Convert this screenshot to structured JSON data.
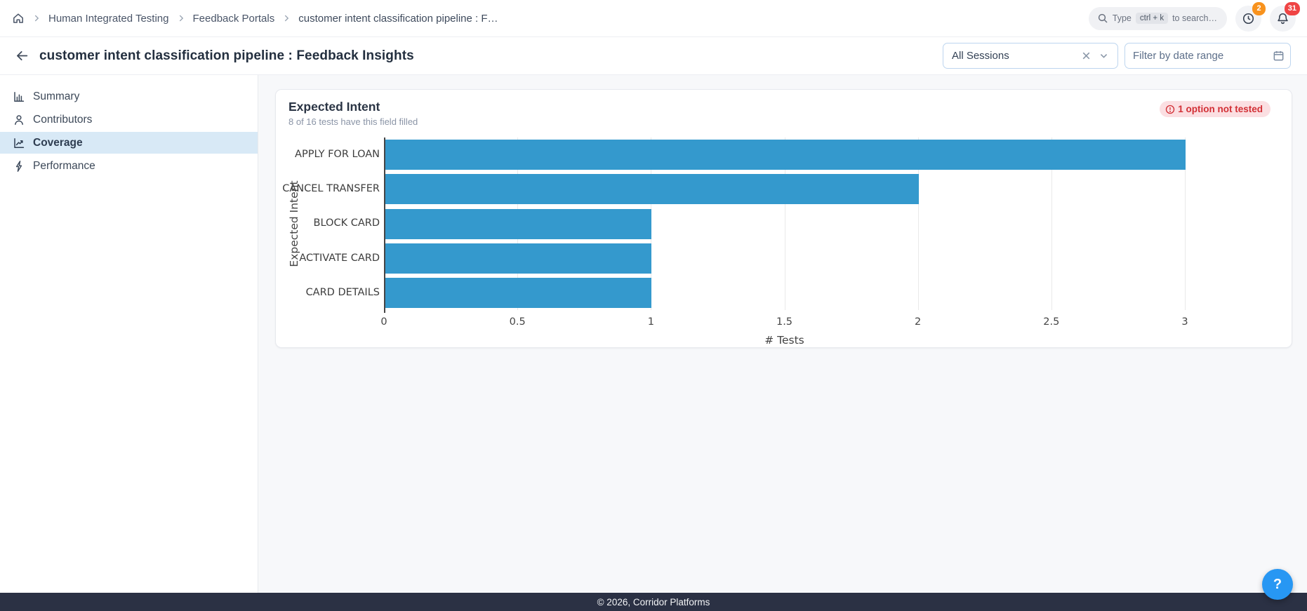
{
  "topbar": {
    "breadcrumb": {
      "items": [
        {
          "label": "Human Integrated Testing"
        },
        {
          "label": "Feedback Portals"
        },
        {
          "label": "customer intent classification pipeline : F…"
        }
      ]
    },
    "search": {
      "prefix": "Type",
      "kbd": "ctrl + k",
      "suffix": "to search…"
    },
    "history_badge": "2",
    "notifications_badge": "31"
  },
  "header": {
    "title": "customer intent classification pipeline : Feedback Insights",
    "session_filter": {
      "value": "All Sessions"
    },
    "date_filter": {
      "placeholder": "Filter by date range"
    }
  },
  "sidebar": {
    "items": [
      {
        "label": "Summary",
        "icon": "bar-chart-icon",
        "active": false
      },
      {
        "label": "Contributors",
        "icon": "person-icon",
        "active": false
      },
      {
        "label": "Coverage",
        "icon": "line-chart-icon",
        "active": true
      },
      {
        "label": "Performance",
        "icon": "lightning-icon",
        "active": false
      }
    ]
  },
  "card": {
    "title": "Expected Intent",
    "subtitle": "8 of 16 tests have this field filled",
    "warning_badge": "1 option not tested"
  },
  "chart_data": {
    "type": "bar",
    "orientation": "horizontal",
    "categories": [
      "APPLY FOR LOAN",
      "CANCEL TRANSFER",
      "BLOCK CARD",
      "ACTIVATE CARD",
      "CARD DETAILS"
    ],
    "values": [
      3,
      2,
      1,
      1,
      1
    ],
    "title": "Expected Intent",
    "xlabel": "# Tests",
    "ylabel": "Expected Intent",
    "xlim": [
      0,
      3
    ],
    "xticks": [
      0,
      0.5,
      1,
      1.5,
      2,
      2.5,
      3
    ],
    "bar_color": "#3499cd",
    "grid": true,
    "legend": "none"
  },
  "colors": {
    "accent_blue": "#2797f3",
    "active_nav_bg": "#d8e9f6",
    "warning_text": "#d22f35",
    "warning_bg": "#fbdfe2",
    "badge_orange": "#f8921d",
    "badge_red": "#ef4444",
    "footer_bg": "#2b3144"
  },
  "footer": {
    "copyright": "© 2026, Corridor Platforms"
  },
  "fab": {
    "label": "?"
  }
}
